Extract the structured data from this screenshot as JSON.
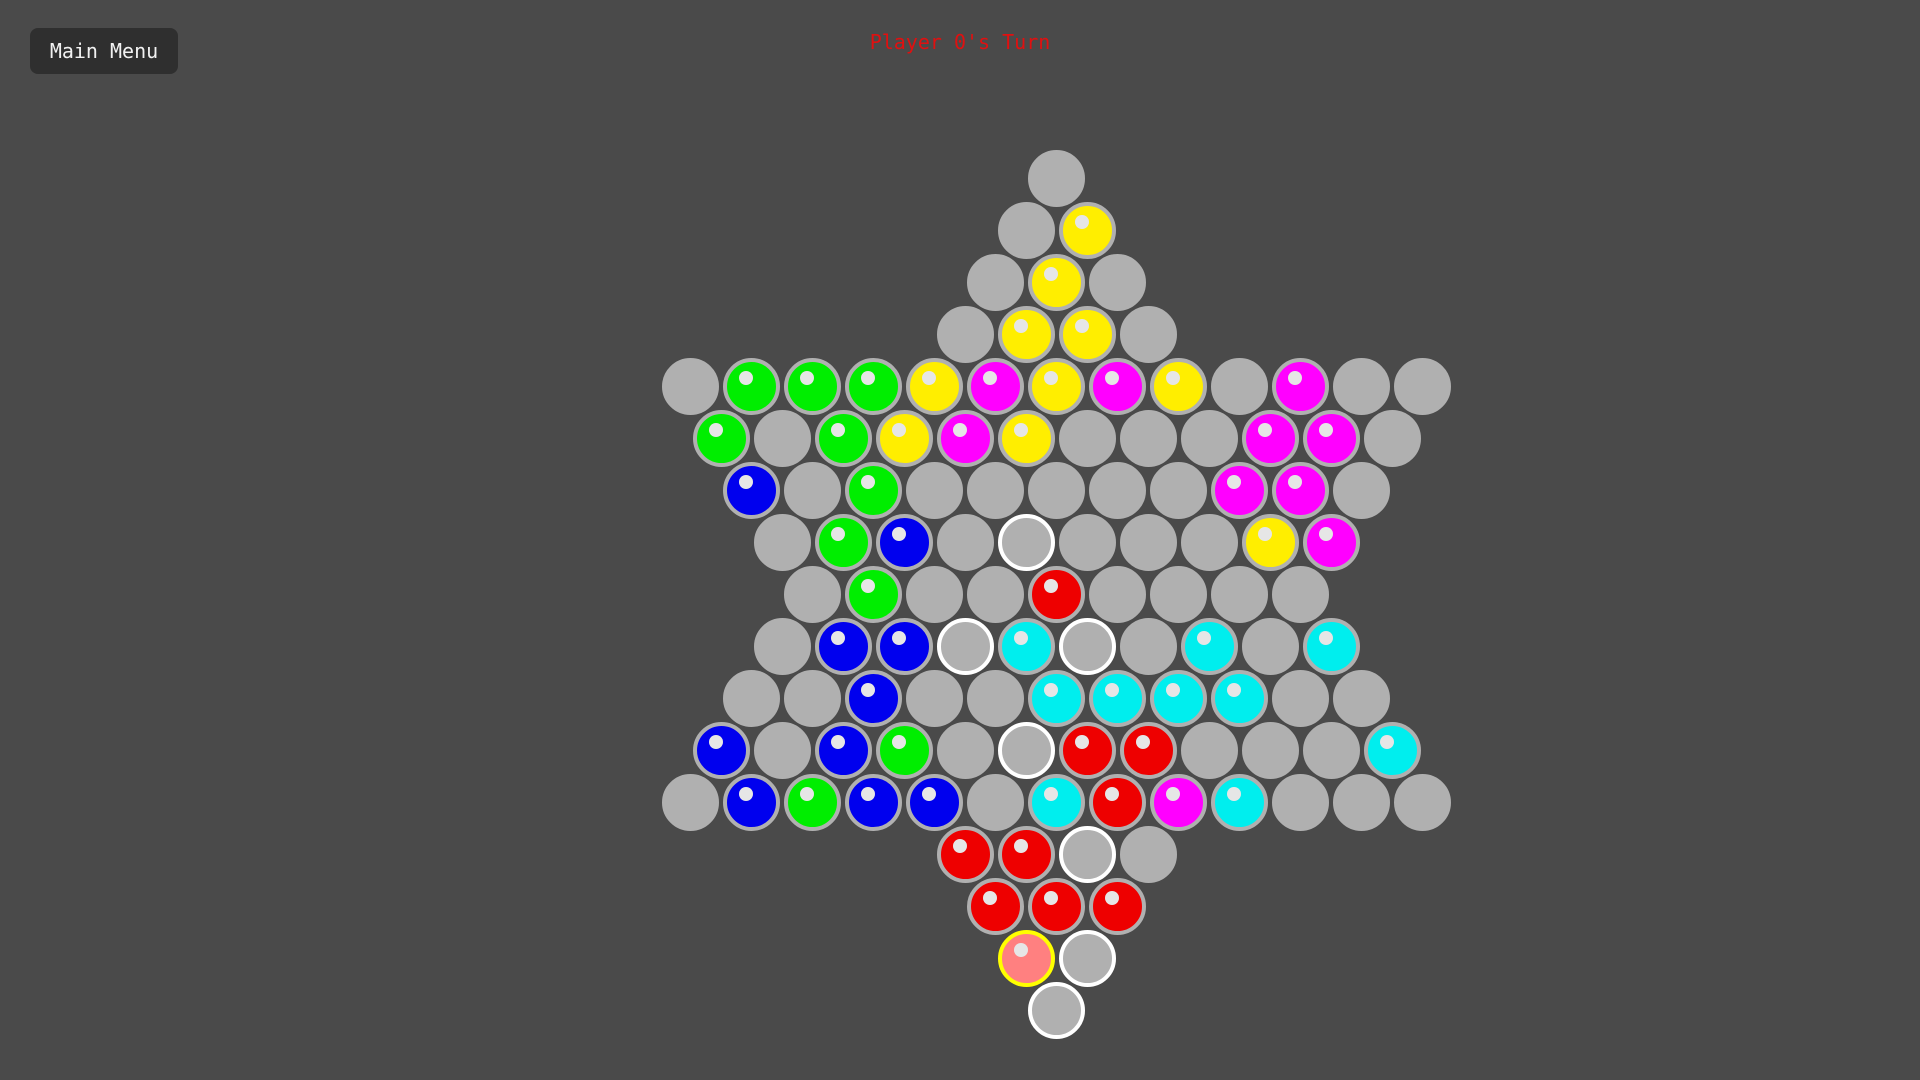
{
  "header": {
    "main_menu_label": "Main Menu",
    "turn_text": "Player 0's Turn"
  },
  "colors": {
    "page_background": "#4a4a4a",
    "menu_button_bg": "#2f2f2f",
    "menu_button_text": "#f2f2f2",
    "turn_text_color": "#e01010",
    "cell_gray": "#b0b0b0",
    "move_target_ring": "#ffffff",
    "selected_ring": "#ffff00",
    "selected_fill": "#ff8080",
    "shine_dot": "#e6e6e6",
    "piece_red": "#ee0000",
    "piece_green": "#00ee00",
    "piece_blue": "#0000ee",
    "piece_yellow": "#ffee00",
    "piece_magenta": "#ff00ff",
    "piece_cyan": "#00eeee"
  },
  "board": {
    "token_names": {
      "_": "empty-cell",
      "H": "move-target-cell",
      "S": "selected-piece-red",
      "R": "piece-red",
      "G": "piece-green",
      "B": "piece-blue",
      "Y": "piece-yellow",
      "M": "piece-magenta",
      "C": "piece-cyan"
    },
    "rows": [
      [
        "_"
      ],
      [
        "_",
        "Y"
      ],
      [
        "_",
        "Y",
        "_"
      ],
      [
        "_",
        "Y",
        "Y",
        "_"
      ],
      [
        "_",
        "G",
        "G",
        "G",
        "Y",
        "M",
        "Y",
        "M",
        "Y",
        "_",
        "M",
        "_",
        "_"
      ],
      [
        "G",
        "_",
        "G",
        "Y",
        "M",
        "Y",
        "_",
        "_",
        "_",
        "M",
        "M",
        "_"
      ],
      [
        "B",
        "_",
        "G",
        "_",
        "_",
        "_",
        "_",
        "_",
        "M",
        "M",
        "_"
      ],
      [
        "_",
        "G",
        "B",
        "_",
        "H",
        "_",
        "_",
        "_",
        "Y",
        "M"
      ],
      [
        "_",
        "G",
        "_",
        "_",
        "R",
        "_",
        "_",
        "_",
        "_"
      ],
      [
        "_",
        "B",
        "B",
        "H",
        "C",
        "H",
        "_",
        "C",
        "_",
        "C"
      ],
      [
        "_",
        "_",
        "B",
        "_",
        "_",
        "C",
        "C",
        "C",
        "C",
        "_",
        "_"
      ],
      [
        "B",
        "_",
        "B",
        "G",
        "_",
        "H",
        "R",
        "R",
        "_",
        "_",
        "_",
        "C"
      ],
      [
        "_",
        "B",
        "G",
        "B",
        "B",
        "_",
        "C",
        "R",
        "M",
        "C",
        "_",
        "_",
        "_"
      ],
      [
        "R",
        "R",
        "H",
        "_"
      ],
      [
        "R",
        "R",
        "R"
      ],
      [
        "S",
        "H"
      ],
      [
        "H"
      ]
    ]
  }
}
